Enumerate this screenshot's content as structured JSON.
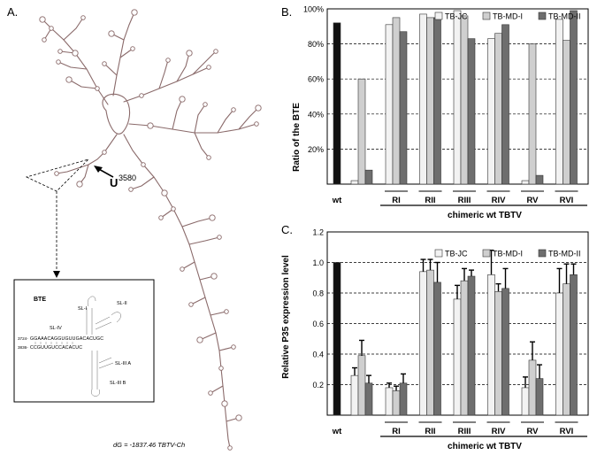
{
  "panels": {
    "a": {
      "letter": "A.",
      "marker_label": "U",
      "marker_sup": "3580",
      "inset": {
        "title": "BTE",
        "labels": [
          "SL-I",
          "SL-II",
          "SL-IV",
          "SL-III A",
          "SL-III B"
        ],
        "pos_start": "3724-",
        "pos_end": "3836-",
        "seq_top": "GGAAACAGGUGUUGACACUGC",
        "seq_bottom": "CCGUUGUCCACACUC"
      },
      "caption": "dG = -1837.46 TBTV-Ch"
    },
    "b": {
      "letter": "B."
    },
    "c": {
      "letter": "C."
    }
  },
  "chart_data": [
    {
      "type": "bar",
      "title": "",
      "ylabel": "Ratio of the BTE",
      "xlabel": "chimeric wt TBTV",
      "ylim": [
        0,
        100
      ],
      "yticks": [
        "20%",
        "40%",
        "60%",
        "80%",
        "100%"
      ],
      "ytick_values": [
        20,
        40,
        60,
        80,
        100
      ],
      "grid": "horizontal dashed",
      "legend_position": "top-right",
      "wt": {
        "label": "wt",
        "value": 92
      },
      "categories": [
        "RI",
        "RII",
        "RIII",
        "RIV",
        "RV",
        "RVI"
      ],
      "pre_bars": [
        2,
        60,
        8
      ],
      "series": [
        {
          "name": "TB-JC",
          "color": "#f2f2f2",
          "values": [
            91,
            97,
            99,
            83,
            2,
            94
          ]
        },
        {
          "name": "TB-MD-I",
          "color": "#cfcfcf",
          "values": [
            95,
            95,
            96,
            86,
            80,
            82
          ]
        },
        {
          "name": "TB-MD-II",
          "color": "#6e6e6e",
          "values": [
            87,
            95,
            83,
            91,
            5,
            99
          ]
        }
      ]
    },
    {
      "type": "bar",
      "title": "",
      "ylabel": "Relative P35 expression level",
      "xlabel": "chimeric wt TBTV",
      "ylim": [
        0,
        1.2
      ],
      "yticks": [
        "0.2",
        "0.4",
        "0.6",
        "0.8",
        "1.0",
        "1.2"
      ],
      "ytick_values": [
        0.2,
        0.4,
        0.6,
        0.8,
        1.0,
        1.2
      ],
      "grid": "horizontal dashed",
      "legend_position": "top-right",
      "wt": {
        "label": "wt",
        "value": 1.0
      },
      "categories": [
        "RI",
        "RII",
        "RIII",
        "RIV",
        "RV",
        "RVI"
      ],
      "pre_bars": [
        0.26,
        0.39,
        0.21
      ],
      "pre_errors": [
        0.05,
        0.1,
        0.05
      ],
      "series": [
        {
          "name": "TB-JC",
          "color": "#f2f2f2",
          "values": [
            0.18,
            0.94,
            0.76,
            0.92,
            0.18,
            0.8
          ],
          "errors": [
            0.03,
            0.08,
            0.09,
            0.16,
            0.07,
            0.16
          ]
        },
        {
          "name": "TB-MD-I",
          "color": "#cfcfcf",
          "values": [
            0.16,
            0.95,
            0.88,
            0.81,
            0.36,
            0.86
          ],
          "errors": [
            0.03,
            0.07,
            0.08,
            0.05,
            0.12,
            0.13
          ]
        },
        {
          "name": "TB-MD-II",
          "color": "#6e6e6e",
          "values": [
            0.21,
            0.87,
            0.91,
            0.83,
            0.24,
            0.92
          ],
          "errors": [
            0.06,
            0.13,
            0.04,
            0.13,
            0.09,
            0.07
          ]
        }
      ]
    }
  ]
}
